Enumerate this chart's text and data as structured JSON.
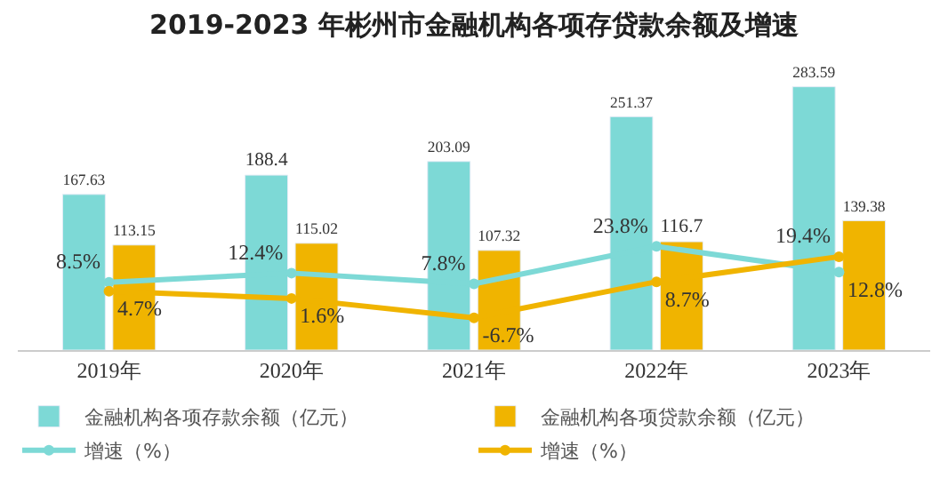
{
  "chart_data": {
    "type": "bar",
    "title": "2019-2023 年彬州市金融机构各项存贷款余额及增速",
    "categories": [
      "2019年",
      "2020年",
      "2021年",
      "2022年",
      "2023年"
    ],
    "series": [
      {
        "name": "金融机构各项存款余额（亿元）",
        "color": "#7dd9d6",
        "values": [
          167.63,
          188.4,
          203.09,
          251.37,
          283.59
        ],
        "value_labels": [
          "167.63",
          "188.4",
          "203.09",
          "251.37",
          "283.59"
        ]
      },
      {
        "name": "金融机构各项贷款余额（亿元）",
        "color": "#f0b400",
        "values": [
          113.15,
          115.02,
          107.32,
          116.7,
          139.38
        ],
        "value_labels": [
          "113.15",
          "115.02",
          "107.32",
          "116.7",
          "139.38"
        ]
      },
      {
        "name": "增速（%）",
        "type": "line",
        "axis": "y2",
        "color": "#7dd9d6",
        "values": [
          8.5,
          12.4,
          7.8,
          23.8,
          12.8
        ],
        "value_labels": [
          "8.5%",
          "12.4%",
          "7.8%",
          "23.8%",
          "12.8%"
        ]
      },
      {
        "name": "增速（%）",
        "type": "line",
        "axis": "y2",
        "color": "#f0b400",
        "values": [
          4.7,
          1.6,
          -6.7,
          8.7,
          19.4
        ],
        "value_labels": [
          "4.7%",
          "1.6%",
          "-6.7%",
          "8.7%",
          "19.4%"
        ]
      }
    ],
    "tick_labels": "x",
    "legend": "bottom",
    "marker": "circle"
  }
}
